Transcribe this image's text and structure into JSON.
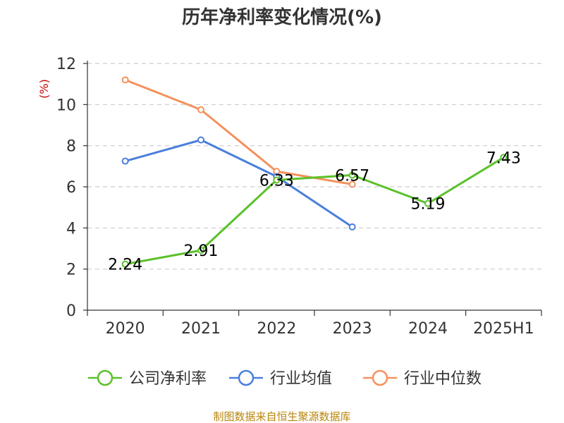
{
  "title": "历年净利率变化情况(%)",
  "source": "制图数据来自恒生聚源数据库",
  "chart_data": {
    "type": "line",
    "title": "历年净利率变化情况(%)",
    "ylabel": "(%)",
    "xlabel": "",
    "categories": [
      "2020",
      "2021",
      "2022",
      "2023",
      "2024",
      "2025H1"
    ],
    "ylim": [
      0,
      12
    ],
    "yticks": [
      0,
      2,
      4,
      6,
      8,
      10,
      12
    ],
    "grid": true,
    "legend_position": "bottom",
    "series": [
      {
        "name": "公司净利率",
        "color": "#5bc12a",
        "values": [
          2.24,
          2.91,
          6.33,
          6.57,
          5.19,
          7.43
        ],
        "labels": [
          "2.24",
          "2.91",
          "6.33",
          "6.57",
          "5.19",
          "7.43"
        ]
      },
      {
        "name": "行业均值",
        "color": "#4a7fdc",
        "values": [
          7.25,
          8.28,
          6.5,
          4.05,
          null,
          null
        ]
      },
      {
        "name": "行业中位数",
        "color": "#f5915c",
        "values": [
          11.2,
          9.75,
          6.75,
          6.12,
          null,
          null
        ]
      }
    ]
  }
}
